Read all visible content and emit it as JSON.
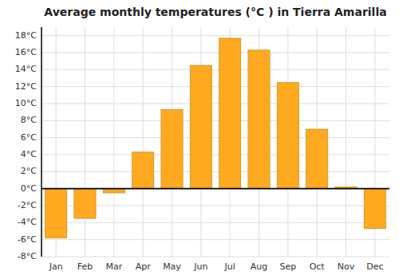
{
  "chart_data": {
    "type": "bar",
    "title": "Average monthly temperatures (°C ) in Tierra Amarilla",
    "categories": [
      "Jan",
      "Feb",
      "Mar",
      "Apr",
      "May",
      "Jun",
      "Jul",
      "Aug",
      "Sep",
      "Oct",
      "Nov",
      "Dec"
    ],
    "values": [
      -5.8,
      -3.5,
      -0.5,
      4.3,
      9.3,
      14.5,
      17.7,
      16.3,
      12.5,
      7.0,
      0.2,
      -4.7
    ],
    "color": "#FFA920",
    "ylim": [
      -8,
      19
    ],
    "yticks": [
      {
        "value": -8,
        "label": "-8°C"
      },
      {
        "value": -6,
        "label": "-6°C"
      },
      {
        "value": -4,
        "label": "-4°C"
      },
      {
        "value": -2,
        "label": "-2°C"
      },
      {
        "value": 0,
        "label": "0°C"
      },
      {
        "value": 2,
        "label": "2°C"
      },
      {
        "value": 4,
        "label": "4°C"
      },
      {
        "value": 6,
        "label": "6°C"
      },
      {
        "value": 8,
        "label": "8°C"
      },
      {
        "value": 10,
        "label": "10°C"
      },
      {
        "value": 12,
        "label": "12°C"
      },
      {
        "value": 14,
        "label": "14°C"
      },
      {
        "value": 16,
        "label": "16°C"
      },
      {
        "value": 18,
        "label": "18°C"
      }
    ],
    "grid": true
  }
}
